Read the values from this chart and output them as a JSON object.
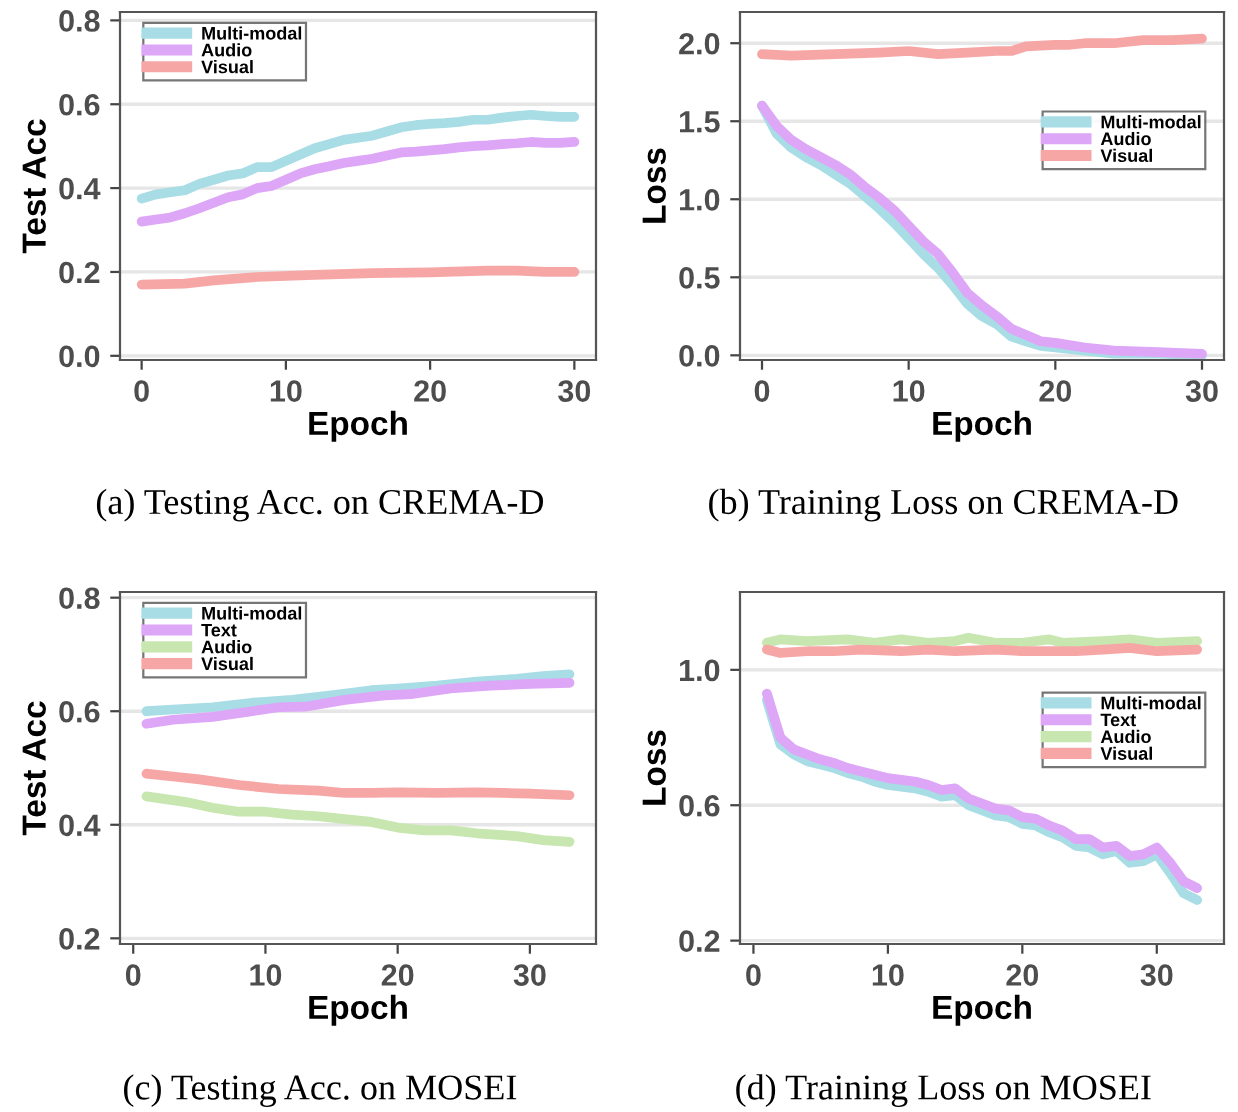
{
  "chart_data": [
    {
      "type": "line",
      "xlabel": "Epoch",
      "ylabel": "Test Acc",
      "xlim": [
        -1.5,
        31.5
      ],
      "ylim": [
        -0.01,
        0.82
      ],
      "xticks": [
        0,
        10,
        20,
        30
      ],
      "yticks": [
        {
          "value": 0,
          "label": "0.0"
        },
        0.2,
        0.4,
        0.6,
        0.8
      ],
      "grid": "y",
      "legend": "top left",
      "annotations": [
        "(a) Testing Acc. on CREMA-D"
      ],
      "series": [
        {
          "name": "Multi-modal",
          "color": "#a8dde6",
          "x": [
            0,
            1,
            2,
            3,
            4,
            5,
            6,
            7,
            8,
            9,
            10,
            11,
            12,
            13,
            14,
            15,
            16,
            17,
            18,
            19,
            20,
            21,
            22,
            23,
            24,
            25,
            26,
            27,
            28,
            29,
            30
          ],
          "values": [
            0.375,
            0.385,
            0.39,
            0.395,
            0.41,
            0.42,
            0.43,
            0.435,
            0.45,
            0.45,
            0.465,
            0.48,
            0.495,
            0.505,
            0.515,
            0.52,
            0.525,
            0.535,
            0.545,
            0.55,
            0.553,
            0.555,
            0.558,
            0.563,
            0.563,
            0.568,
            0.572,
            0.575,
            0.572,
            0.57,
            0.57
          ]
        },
        {
          "name": "Audio",
          "color": "#dda6f7",
          "x": [
            0,
            1,
            2,
            3,
            4,
            5,
            6,
            7,
            8,
            9,
            10,
            11,
            12,
            13,
            14,
            15,
            16,
            17,
            18,
            19,
            20,
            21,
            22,
            23,
            24,
            25,
            26,
            27,
            28,
            29,
            30
          ],
          "values": [
            0.32,
            0.325,
            0.33,
            0.34,
            0.352,
            0.365,
            0.378,
            0.385,
            0.4,
            0.405,
            0.42,
            0.435,
            0.445,
            0.452,
            0.46,
            0.465,
            0.47,
            0.478,
            0.485,
            0.487,
            0.49,
            0.493,
            0.497,
            0.5,
            0.502,
            0.505,
            0.507,
            0.51,
            0.508,
            0.508,
            0.51
          ]
        },
        {
          "name": "Visual",
          "color": "#f7a6a6",
          "x": [
            0,
            3,
            5,
            8,
            12,
            16,
            20,
            24,
            26,
            28,
            30
          ],
          "values": [
            0.17,
            0.172,
            0.18,
            0.188,
            0.193,
            0.197,
            0.199,
            0.203,
            0.203,
            0.2,
            0.2
          ]
        }
      ]
    },
    {
      "type": "line",
      "xlabel": "Epoch",
      "ylabel": "Loss",
      "xlim": [
        -1.5,
        31.5
      ],
      "ylim": [
        -0.03,
        2.2
      ],
      "xticks": [
        0,
        10,
        20,
        30
      ],
      "yticks": [
        {
          "value": 0,
          "label": "0.0"
        },
        0.5,
        {
          "value": 1,
          "label": "1.0"
        },
        1.5,
        {
          "value": 2,
          "label": "2.0"
        }
      ],
      "grid": "y",
      "legend": "right",
      "annotations": [
        "(b) Training Loss on CREMA-D"
      ],
      "series": [
        {
          "name": "Multi-modal",
          "color": "#a8dde6",
          "x": [
            0,
            1,
            2,
            3,
            4,
            5,
            6,
            7,
            8,
            9,
            10,
            11,
            12,
            13,
            14,
            15,
            16,
            17,
            18,
            19,
            20,
            22,
            24,
            27,
            30
          ],
          "values": [
            1.6,
            1.42,
            1.33,
            1.27,
            1.22,
            1.16,
            1.1,
            1.02,
            0.94,
            0.85,
            0.75,
            0.65,
            0.56,
            0.45,
            0.33,
            0.25,
            0.2,
            0.12,
            0.09,
            0.06,
            0.05,
            0.03,
            0.01,
            0.01,
            0.0
          ]
        },
        {
          "name": "Audio",
          "color": "#dda6f7",
          "x": [
            0,
            1,
            2,
            3,
            4,
            5,
            6,
            7,
            8,
            9,
            10,
            11,
            12,
            13,
            14,
            15,
            16,
            17,
            18,
            19,
            20,
            22,
            24,
            27,
            30
          ],
          "values": [
            1.6,
            1.47,
            1.38,
            1.32,
            1.27,
            1.22,
            1.16,
            1.08,
            1.01,
            0.93,
            0.83,
            0.73,
            0.65,
            0.53,
            0.4,
            0.32,
            0.25,
            0.17,
            0.13,
            0.09,
            0.08,
            0.05,
            0.03,
            0.02,
            0.01
          ]
        },
        {
          "name": "Visual",
          "color": "#f7a6a6",
          "x": [
            0,
            2,
            5,
            8,
            10,
            12,
            14,
            16,
            17,
            18,
            20,
            21,
            22,
            24,
            26,
            28,
            30
          ],
          "values": [
            1.93,
            1.92,
            1.93,
            1.94,
            1.95,
            1.93,
            1.94,
            1.95,
            1.95,
            1.98,
            1.99,
            1.99,
            2.0,
            2.0,
            2.02,
            2.02,
            2.03
          ]
        }
      ]
    },
    {
      "type": "line",
      "xlabel": "Epoch",
      "ylabel": "Test Acc",
      "xlim": [
        -1,
        35
      ],
      "ylim": [
        0.19,
        0.81
      ],
      "xticks": [
        0,
        10,
        20,
        30
      ],
      "yticks": [
        0.2,
        0.4,
        0.6,
        0.8
      ],
      "grid": "y",
      "legend": "top left",
      "annotations": [
        "(c) Testing Acc. on MOSEI"
      ],
      "series": [
        {
          "name": "Multi-modal",
          "color": "#a8dde6",
          "x": [
            1,
            3,
            6,
            9,
            12,
            15,
            18,
            20,
            23,
            26,
            29,
            31,
            33
          ],
          "values": [
            0.6,
            0.603,
            0.607,
            0.615,
            0.62,
            0.628,
            0.637,
            0.64,
            0.645,
            0.652,
            0.657,
            0.662,
            0.665
          ]
        },
        {
          "name": "Text",
          "color": "#dda6f7",
          "x": [
            1,
            3,
            6,
            9,
            11,
            13,
            16,
            19,
            21,
            24,
            27,
            30,
            33
          ],
          "values": [
            0.578,
            0.585,
            0.59,
            0.6,
            0.607,
            0.608,
            0.62,
            0.628,
            0.63,
            0.64,
            0.645,
            0.648,
            0.65
          ]
        },
        {
          "name": "Audio",
          "color": "#c8e6b0",
          "x": [
            1,
            4,
            6,
            8,
            10,
            12,
            14,
            16,
            18,
            20,
            22,
            24,
            26,
            29,
            31,
            33
          ],
          "values": [
            0.45,
            0.44,
            0.43,
            0.423,
            0.423,
            0.418,
            0.415,
            0.41,
            0.405,
            0.395,
            0.39,
            0.39,
            0.385,
            0.38,
            0.373,
            0.37
          ]
        },
        {
          "name": "Visual",
          "color": "#f7a6a6",
          "x": [
            1,
            3,
            5,
            8,
            11,
            14,
            16,
            18,
            20,
            23,
            26,
            28,
            30,
            33
          ],
          "values": [
            0.49,
            0.485,
            0.48,
            0.47,
            0.463,
            0.46,
            0.456,
            0.456,
            0.457,
            0.456,
            0.457,
            0.456,
            0.455,
            0.452
          ]
        }
      ]
    },
    {
      "type": "line",
      "xlabel": "Epoch",
      "ylabel": "Loss",
      "xlim": [
        -1,
        35
      ],
      "ylim": [
        0.19,
        1.23
      ],
      "xticks": [
        0,
        10,
        20,
        30
      ],
      "yticks": [
        0.2,
        0.6,
        {
          "value": 1,
          "label": "1.0"
        }
      ],
      "grid": "y",
      "legend": "right",
      "annotations": [
        "(d) Training Loss on MOSEI"
      ],
      "series": [
        {
          "name": "Multi-modal",
          "color": "#a8dde6",
          "x": [
            1,
            2,
            3,
            4,
            5,
            6,
            7,
            8,
            9,
            10,
            11,
            12,
            13,
            14,
            15,
            16,
            17,
            18,
            19,
            20,
            21,
            22,
            23,
            24,
            25,
            26,
            27,
            28,
            29,
            30,
            31,
            32,
            33
          ],
          "values": [
            0.91,
            0.78,
            0.75,
            0.73,
            0.72,
            0.71,
            0.695,
            0.685,
            0.67,
            0.66,
            0.655,
            0.65,
            0.64,
            0.625,
            0.63,
            0.6,
            0.585,
            0.57,
            0.565,
            0.545,
            0.54,
            0.52,
            0.505,
            0.48,
            0.475,
            0.455,
            0.465,
            0.43,
            0.435,
            0.455,
            0.4,
            0.34,
            0.32
          ]
        },
        {
          "name": "Text",
          "color": "#dda6f7",
          "x": [
            1,
            2,
            3,
            4,
            5,
            6,
            7,
            8,
            9,
            10,
            11,
            12,
            13,
            14,
            15,
            16,
            17,
            18,
            19,
            20,
            21,
            22,
            23,
            24,
            25,
            26,
            27,
            28,
            29,
            30,
            31,
            32,
            33
          ],
          "values": [
            0.93,
            0.8,
            0.765,
            0.75,
            0.735,
            0.725,
            0.71,
            0.7,
            0.69,
            0.68,
            0.675,
            0.67,
            0.66,
            0.645,
            0.65,
            0.62,
            0.605,
            0.59,
            0.585,
            0.565,
            0.56,
            0.54,
            0.525,
            0.5,
            0.5,
            0.475,
            0.48,
            0.45,
            0.455,
            0.475,
            0.43,
            0.375,
            0.355
          ]
        },
        {
          "name": "Audio",
          "color": "#c8e6b0",
          "x": [
            1,
            2,
            4,
            7,
            9,
            11,
            13,
            15,
            16,
            18,
            20,
            22,
            23,
            26,
            28,
            30,
            33
          ],
          "values": [
            1.08,
            1.09,
            1.085,
            1.09,
            1.08,
            1.09,
            1.08,
            1.085,
            1.095,
            1.08,
            1.08,
            1.09,
            1.08,
            1.085,
            1.09,
            1.08,
            1.085
          ]
        },
        {
          "name": "Visual",
          "color": "#f7a6a6",
          "x": [
            1,
            2,
            4,
            6,
            8,
            11,
            13,
            15,
            18,
            20,
            24,
            26,
            28,
            30,
            33
          ],
          "values": [
            1.06,
            1.05,
            1.055,
            1.055,
            1.06,
            1.055,
            1.06,
            1.055,
            1.06,
            1.055,
            1.055,
            1.06,
            1.065,
            1.055,
            1.06
          ]
        }
      ]
    }
  ]
}
